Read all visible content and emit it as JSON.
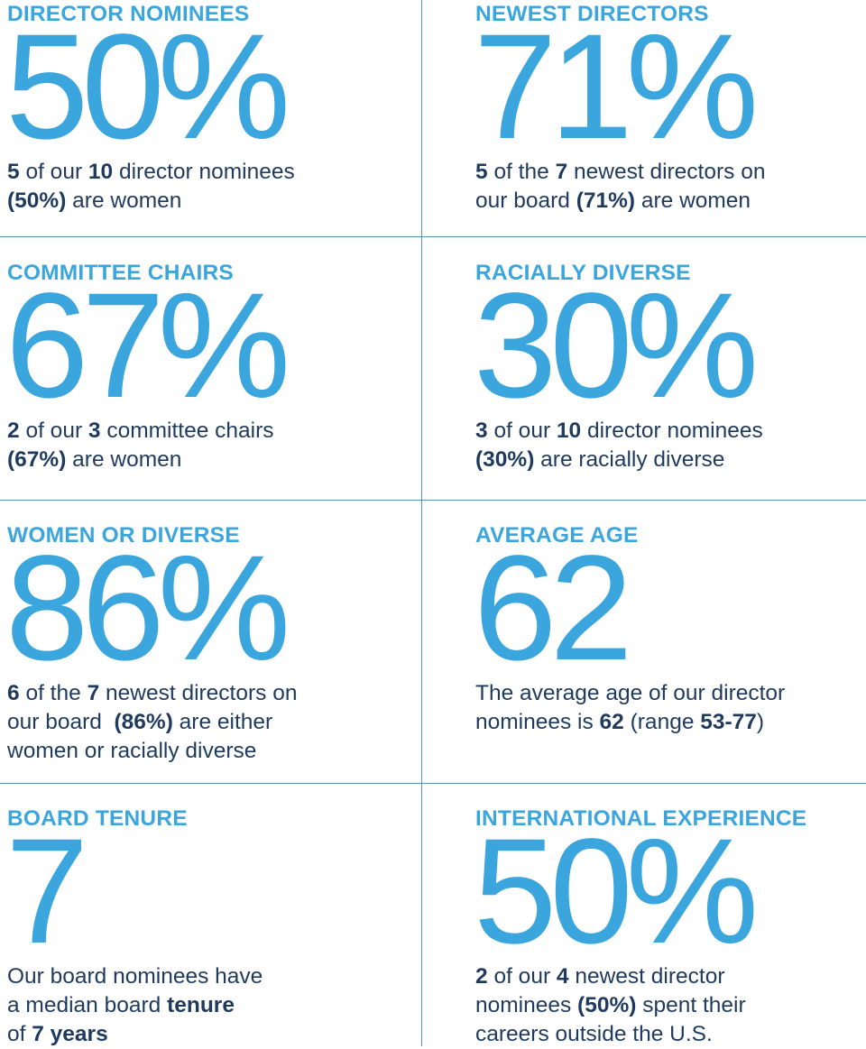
{
  "colors": {
    "accent": "#3aa6dd",
    "text": "#1f3a5f",
    "divider": "#5a93b0"
  },
  "cells": {
    "director_nominees": {
      "heading": "DIRECTOR NOMINEES",
      "stat": "50%",
      "line1": [
        "5",
        " of our ",
        "10",
        " director nominees"
      ],
      "line2": [
        "(50%)",
        " are women"
      ]
    },
    "newest_directors": {
      "heading": "NEWEST DIRECTORS",
      "stat": "71%",
      "line1": [
        "5",
        " of the ",
        "7",
        " newest directors on"
      ],
      "line2": [
        "our board ",
        "(71%)",
        " are women"
      ]
    },
    "committee_chairs": {
      "heading": "COMMITTEE CHAIRS",
      "stat": "67%",
      "line1": [
        "2",
        " of our ",
        "3",
        " committee chairs"
      ],
      "line2": [
        "(67%)",
        " are women"
      ]
    },
    "racially_diverse": {
      "heading": "RACIALLY DIVERSE",
      "stat": "30%",
      "line1": [
        "3",
        " of our ",
        "10",
        " director nominees"
      ],
      "line2": [
        "(30%)",
        " are racially diverse"
      ]
    },
    "women_or_diverse": {
      "heading": "WOMEN OR DIVERSE",
      "stat": "86%",
      "line1": [
        "6",
        " of the ",
        "7",
        " newest directors on"
      ],
      "line2": [
        "our board  ",
        "(86%)",
        " are either"
      ],
      "line3": "women or racially diverse"
    },
    "average_age": {
      "heading": "AVERAGE AGE",
      "stat": "62",
      "line1": "The average age of our director",
      "line2": [
        "nominees is ",
        "62",
        " (range ",
        "53-77",
        ")"
      ]
    },
    "board_tenure": {
      "heading": "BOARD TENURE",
      "stat": "7",
      "line1": "Our board nominees have",
      "line2": [
        "a median board ",
        "tenure"
      ],
      "line3": [
        "of ",
        "7 years"
      ]
    },
    "international_experience": {
      "heading": "INTERNATIONAL EXPERIENCE",
      "stat": "50%",
      "line1": [
        "2",
        " of our ",
        "4",
        " newest director"
      ],
      "line2": [
        "nominees ",
        "(50%)",
        " spent their"
      ],
      "line3": "careers outside the U.S."
    }
  }
}
